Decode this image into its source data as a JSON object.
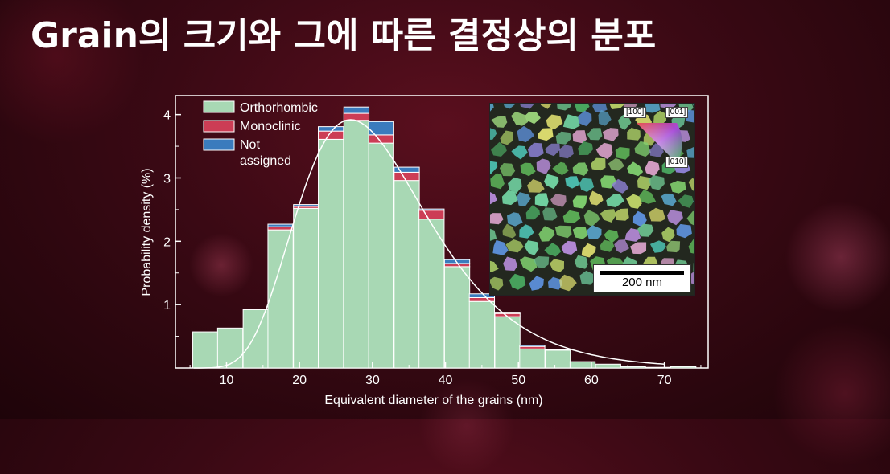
{
  "slide": {
    "title": "Grain의 크기와 그에 따른 결정상의 분포"
  },
  "chart_data": {
    "type": "bar",
    "stacked": true,
    "xlabel": "Equivalent diameter of the grains (nm)",
    "ylabel": "Probability density (%)",
    "xlim": [
      3,
      76
    ],
    "ylim": [
      0,
      4.3
    ],
    "xticks": [
      10,
      20,
      30,
      40,
      50,
      60,
      70
    ],
    "yticks": [
      1,
      2,
      3,
      4
    ],
    "bin_width": 3.45,
    "bin_centers": [
      7.1,
      10.5,
      14.0,
      17.4,
      20.9,
      24.3,
      27.8,
      31.2,
      34.7,
      38.1,
      41.6,
      45.0,
      48.5,
      51.9,
      55.4,
      58.8,
      62.3,
      65.7,
      69.2,
      72.6
    ],
    "series": [
      {
        "name": "Orthorhombic",
        "color": "#a8d8b4",
        "values": [
          0.57,
          0.63,
          0.92,
          2.18,
          2.52,
          3.61,
          3.91,
          3.55,
          2.96,
          2.35,
          1.6,
          1.05,
          0.81,
          0.3,
          0.28,
          0.1,
          0.06,
          0.02,
          0.01,
          0.02
        ]
      },
      {
        "name": "Monoclinic",
        "color": "#cc3d55",
        "values": [
          0,
          0,
          0,
          0.05,
          0.03,
          0.13,
          0.11,
          0.13,
          0.13,
          0.14,
          0.05,
          0.06,
          0.05,
          0.04,
          0,
          0,
          0,
          0,
          0,
          0
        ]
      },
      {
        "name": "Not assigned",
        "color": "#3a7bbd",
        "values": [
          0,
          0,
          0,
          0.04,
          0.03,
          0.07,
          0.1,
          0.21,
          0.08,
          0.02,
          0.06,
          0.06,
          0.02,
          0.02,
          0.01,
          0,
          0,
          0,
          0,
          0
        ]
      }
    ],
    "fit_curve": {
      "color": "#ffffff",
      "peak_x": 27.0,
      "peak_y": 3.92
    },
    "legend": {
      "position": "top-left",
      "entries": [
        "Orthorhombic",
        "Monoclinic",
        "Not",
        "assigned"
      ]
    }
  },
  "inset": {
    "scale_bar_label": "200 nm",
    "ipf_labels": [
      "[100]",
      "[001]",
      "[010]"
    ]
  }
}
